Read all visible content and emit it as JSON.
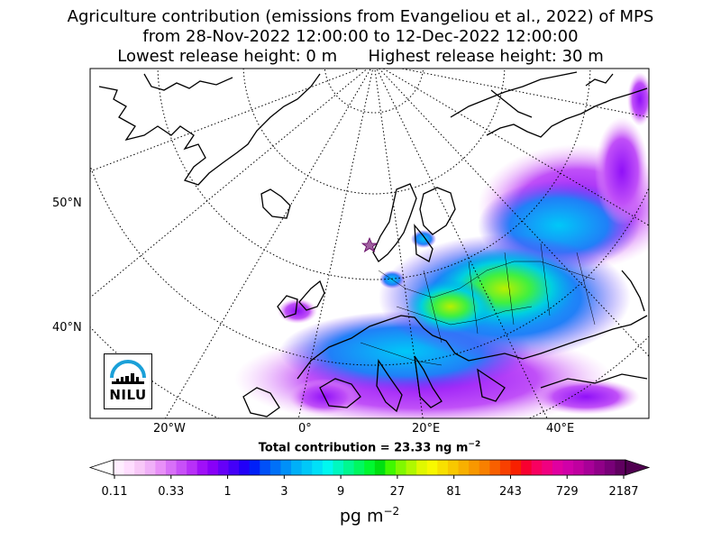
{
  "title": {
    "line1": "Agriculture contribution (emissions from Evangeliou et al., 2022) of MPS",
    "line2": "from 28-Nov-2022 12:00:00 to 12-Dec-2022 12:00:00",
    "line3": "Lowest release height: 0 m      Highest release height: 30 m"
  },
  "axes": {
    "lon_labels": [
      "20°W",
      "0°",
      "20°E",
      "40°E"
    ],
    "lat_labels": [
      "50°N",
      "40°N"
    ]
  },
  "total": {
    "prefix": "Total contribution = 23.33 ng m",
    "exponent": "−2"
  },
  "logo": {
    "text": "NILU",
    "color": "#1aa0d8"
  },
  "colorbar": {
    "ticks": [
      "0.11",
      "0.33",
      "1",
      "3",
      "9",
      "27",
      "81",
      "243",
      "729",
      "2187"
    ],
    "unit": "pg m",
    "unit_exponent": "−2",
    "colors": [
      "#ffeeff",
      "#ffddff",
      "#f8c8f8",
      "#f0b0f8",
      "#e890f8",
      "#d870f8",
      "#c850f8",
      "#b830f8",
      "#a010f8",
      "#8800f8",
      "#6600f8",
      "#4400f8",
      "#2200f8",
      "#0020f8",
      "#0050f8",
      "#0070f8",
      "#0090f8",
      "#00b0f8",
      "#00c8f8",
      "#00e0f8",
      "#00f8f0",
      "#00f8c0",
      "#00f890",
      "#00f860",
      "#00f830",
      "#00e010",
      "#40f800",
      "#80f800",
      "#b0f800",
      "#e0f800",
      "#f8f800",
      "#f8e000",
      "#f8c800",
      "#f8b000",
      "#f89800",
      "#f88000",
      "#f86000",
      "#f84000",
      "#f82000",
      "#f80030",
      "#f80060",
      "#f00080",
      "#e000a0",
      "#d000a8",
      "#c000a0",
      "#a80098",
      "#900088",
      "#780078",
      "#600060"
    ]
  }
}
